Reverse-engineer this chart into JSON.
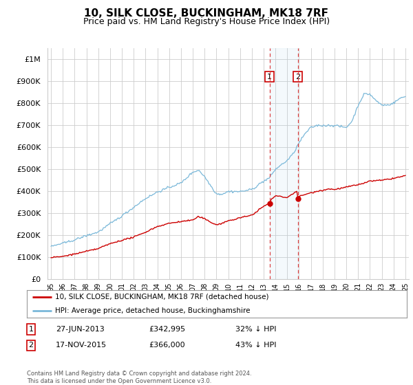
{
  "title": "10, SILK CLOSE, BUCKINGHAM, MK18 7RF",
  "subtitle": "Price paid vs. HM Land Registry's House Price Index (HPI)",
  "title_fontsize": 11,
  "subtitle_fontsize": 9,
  "hpi_color": "#7ab8d9",
  "price_color": "#cc0000",
  "bg_color": "#ffffff",
  "grid_color": "#cccccc",
  "ylim": [
    0,
    1050000
  ],
  "yticks": [
    0,
    100000,
    200000,
    300000,
    400000,
    500000,
    600000,
    700000,
    800000,
    900000,
    1000000
  ],
  "ytick_labels": [
    "£0",
    "£100K",
    "£200K",
    "£300K",
    "£400K",
    "£500K",
    "£600K",
    "£700K",
    "£800K",
    "£900K",
    "£1M"
  ],
  "transaction1_date": 2013.5,
  "transaction1_price": 342995,
  "transaction2_date": 2015.9,
  "transaction2_price": 366000,
  "legend_entries": [
    "10, SILK CLOSE, BUCKINGHAM, MK18 7RF (detached house)",
    "HPI: Average price, detached house, Buckinghamshire"
  ],
  "table_entries": [
    {
      "num": "1",
      "date": "27-JUN-2013",
      "price": "£342,995",
      "note": "32% ↓ HPI"
    },
    {
      "num": "2",
      "date": "17-NOV-2015",
      "price": "£366,000",
      "note": "43% ↓ HPI"
    }
  ],
  "footnote": "Contains HM Land Registry data © Crown copyright and database right 2024.\nThis data is licensed under the Open Government Licence v3.0.",
  "hpi_nodes_x": [
    1995,
    1996,
    1997,
    1998,
    1999,
    2000,
    2001,
    2002,
    2003,
    2004,
    2005,
    2006,
    2007,
    2007.5,
    2008,
    2008.5,
    2009,
    2009.5,
    2010,
    2011,
    2012,
    2013,
    2013.5,
    2014,
    2014.5,
    2015,
    2015.5,
    2016,
    2016.5,
    2017,
    2017.5,
    2018,
    2019,
    2020,
    2020.5,
    2021,
    2021.5,
    2022,
    2022.5,
    2023,
    2023.5,
    2024,
    2024.5,
    2025
  ],
  "hpi_nodes_y": [
    148000,
    162000,
    180000,
    200000,
    218000,
    255000,
    290000,
    330000,
    370000,
    400000,
    420000,
    440000,
    490000,
    500000,
    470000,
    430000,
    390000,
    390000,
    400000,
    400000,
    410000,
    445000,
    460000,
    500000,
    520000,
    540000,
    570000,
    620000,
    660000,
    690000,
    700000,
    700000,
    700000,
    690000,
    720000,
    790000,
    840000,
    840000,
    810000,
    790000,
    790000,
    800000,
    820000,
    830000
  ],
  "price_nodes_x": [
    1995,
    1996,
    1997,
    1998,
    1999,
    2000,
    2001,
    2002,
    2003,
    2004,
    2005,
    2006,
    2007,
    2007.5,
    2008,
    2008.5,
    2009,
    2009.5,
    2010,
    2010.5,
    2011,
    2011.5,
    2012,
    2012.5,
    2013,
    2013.4,
    2013.5,
    2013.6,
    2014,
    2014.5,
    2015,
    2015.8,
    2015.9,
    2016,
    2016.5,
    2017,
    2017.5,
    2018,
    2018.5,
    2019,
    2019.5,
    2020,
    2021,
    2022,
    2023,
    2024,
    2025
  ],
  "price_nodes_y": [
    98000,
    104000,
    115000,
    128000,
    140000,
    162000,
    178000,
    192000,
    215000,
    240000,
    255000,
    263000,
    270000,
    285000,
    275000,
    260000,
    248000,
    253000,
    265000,
    270000,
    278000,
    283000,
    290000,
    310000,
    330000,
    342000,
    342995,
    360000,
    378000,
    375000,
    370000,
    400000,
    366000,
    375000,
    385000,
    392000,
    400000,
    405000,
    410000,
    408000,
    412000,
    418000,
    428000,
    445000,
    448000,
    458000,
    470000
  ]
}
